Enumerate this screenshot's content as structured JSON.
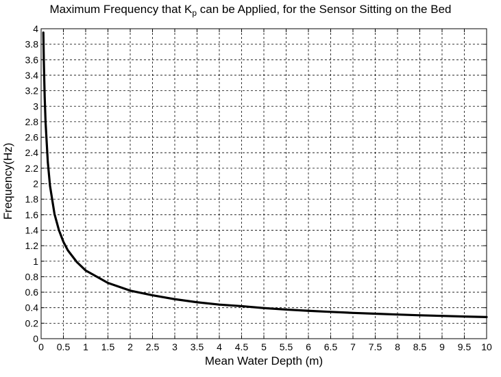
{
  "chart_data": {
    "type": "line",
    "title_main": "Maximum Frequency that K",
    "title_sub": "p",
    "title_rest": " can be Applied, for the Sensor Sitting on the Bed",
    "xlabel": "Mean Water Depth (m)",
    "ylabel": "Frequency(Hz)",
    "xlim": [
      0,
      10
    ],
    "ylim": [
      0,
      4
    ],
    "grid": true,
    "x_ticks": [
      "0",
      "0.5",
      "1",
      "1.5",
      "2",
      "2.5",
      "3",
      "3.5",
      "4",
      "4.5",
      "5",
      "5.5",
      "6",
      "6.5",
      "7",
      "7.5",
      "8",
      "8.5",
      "9",
      "9.5",
      "10"
    ],
    "y_ticks": [
      "0",
      "0.2",
      "0.4",
      "0.6",
      "0.8",
      "1",
      "1.2",
      "1.4",
      "1.6",
      "1.8",
      "2",
      "2.2",
      "2.4",
      "2.6",
      "2.8",
      "3",
      "3.2",
      "3.4",
      "3.6",
      "3.8",
      "4"
    ],
    "line_color": "#000000",
    "series": [
      {
        "x": [
          0.05,
          0.06,
          0.08,
          0.1,
          0.15,
          0.2,
          0.3,
          0.4,
          0.5,
          0.6,
          0.8,
          1.0,
          1.5,
          2.0,
          2.5,
          3.0,
          3.5,
          4.0,
          4.5,
          5.0,
          5.5,
          6.0,
          6.5,
          7.0,
          7.5,
          8.0,
          8.5,
          9.0,
          9.5,
          10.0
        ],
        "y": [
          3.95,
          3.6,
          3.12,
          2.79,
          2.28,
          1.97,
          1.61,
          1.4,
          1.25,
          1.14,
          0.99,
          0.88,
          0.72,
          0.62,
          0.56,
          0.51,
          0.47,
          0.44,
          0.42,
          0.395,
          0.376,
          0.36,
          0.346,
          0.333,
          0.322,
          0.312,
          0.302,
          0.294,
          0.286,
          0.279
        ]
      }
    ]
  }
}
